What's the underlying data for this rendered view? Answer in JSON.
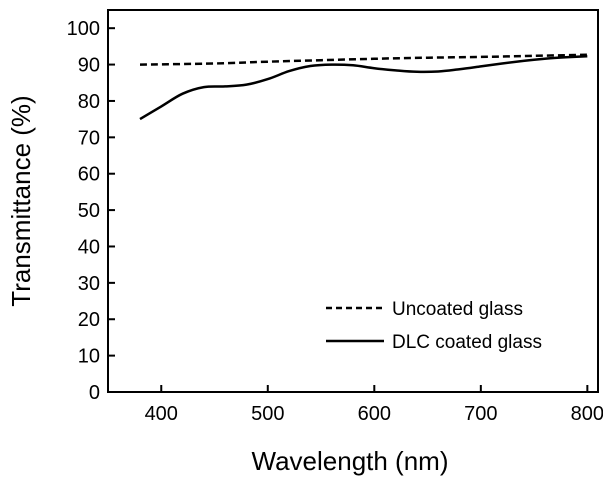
{
  "chart_data": {
    "type": "line",
    "title": "",
    "xlabel": "Wavelength (nm)",
    "ylabel": "Transmittance (%)",
    "xlim": [
      350,
      810
    ],
    "ylim": [
      0,
      105
    ],
    "xticks": [
      400,
      500,
      600,
      700,
      800
    ],
    "yticks": [
      0,
      10,
      20,
      30,
      40,
      50,
      60,
      70,
      80,
      90,
      100
    ],
    "grid": false,
    "legend_position": "bottom-right",
    "series": [
      {
        "name": "Uncoated glass",
        "line_style": "dashed",
        "color": "#000000",
        "x": [
          380,
          450,
          500,
          550,
          600,
          650,
          700,
          750,
          800
        ],
        "y": [
          90.0,
          90.3,
          90.8,
          91.2,
          91.6,
          91.9,
          92.1,
          92.4,
          92.7
        ]
      },
      {
        "name": "DLC coated glass",
        "line_style": "solid",
        "color": "#000000",
        "x": [
          380,
          400,
          420,
          440,
          460,
          480,
          500,
          520,
          540,
          560,
          580,
          600,
          620,
          640,
          660,
          680,
          700,
          720,
          740,
          760,
          780,
          800
        ],
        "y": [
          75.0,
          78.5,
          82.0,
          83.8,
          84.0,
          84.5,
          86.0,
          88.2,
          89.6,
          90.0,
          89.8,
          89.0,
          88.4,
          88.0,
          88.1,
          88.7,
          89.5,
          90.3,
          91.0,
          91.6,
          92.0,
          92.3
        ]
      }
    ]
  }
}
